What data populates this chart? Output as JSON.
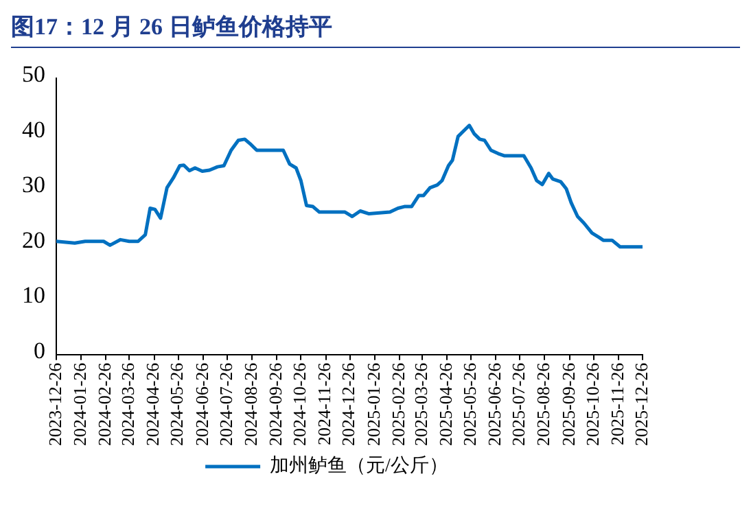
{
  "chart_data": {
    "type": "line",
    "title": "图17：12 月 26 日鲈鱼价格持平",
    "x": [
      "2023-12-26",
      "2024-01-18",
      "2024-01-31",
      "2024-02-23",
      "2024-03-02",
      "2024-03-15",
      "2024-03-26",
      "2024-04-06",
      "2024-04-15",
      "2024-04-21",
      "2024-04-27",
      "2024-05-04",
      "2024-05-12",
      "2024-05-20",
      "2024-05-28",
      "2024-06-02",
      "2024-06-09",
      "2024-06-16",
      "2024-06-25",
      "2024-07-04",
      "2024-07-14",
      "2024-07-22",
      "2024-07-31",
      "2024-08-09",
      "2024-08-17",
      "2024-08-25",
      "2024-09-01",
      "2024-09-21",
      "2024-10-04",
      "2024-10-12",
      "2024-10-20",
      "2024-10-26",
      "2024-11-02",
      "2024-11-10",
      "2024-11-18",
      "2024-12-20",
      "2024-12-29",
      "2025-01-08",
      "2025-01-19",
      "2025-02-14",
      "2025-02-24",
      "2025-03-04",
      "2025-03-13",
      "2025-03-22",
      "2025-03-28",
      "2025-04-05",
      "2025-04-14",
      "2025-04-20",
      "2025-04-28",
      "2025-05-03",
      "2025-05-10",
      "2025-05-17",
      "2025-05-24",
      "2025-05-30",
      "2025-06-06",
      "2025-06-12",
      "2025-06-20",
      "2025-06-29",
      "2025-07-07",
      "2025-07-31",
      "2025-08-09",
      "2025-08-16",
      "2025-08-23",
      "2025-08-31",
      "2025-09-05",
      "2025-09-15",
      "2025-09-22",
      "2025-09-28",
      "2025-10-06",
      "2025-10-14",
      "2025-10-24",
      "2025-11-02",
      "2025-11-07",
      "2025-11-18",
      "2025-11-28",
      "2025-12-26"
    ],
    "series": [
      {
        "name": "加州鲈鱼（元/公斤）",
        "color": "#0070c0",
        "values": [
          20.5,
          20.2,
          20.5,
          20.5,
          19.8,
          20.8,
          20.5,
          20.5,
          21.7,
          26.5,
          26.3,
          24.7,
          30.2,
          32,
          34.2,
          34.3,
          33.3,
          33.8,
          33.2,
          33.4,
          34,
          34.2,
          37,
          38.8,
          39,
          38,
          37,
          37,
          37,
          34.5,
          33.8,
          31.5,
          27,
          26.8,
          25.8,
          25.8,
          25,
          26,
          25.5,
          25.8,
          26.5,
          26.8,
          26.8,
          28.8,
          28.8,
          30.2,
          30.7,
          31.5,
          34.2,
          35.2,
          39.5,
          40.5,
          41.5,
          40,
          39,
          38.8,
          37,
          36.4,
          36,
          36,
          33.8,
          31.5,
          30.8,
          32.8,
          31.8,
          31.3,
          30,
          27.5,
          25,
          23.8,
          22,
          21.2,
          20.7,
          20.7,
          19.5,
          19.5
        ]
      }
    ],
    "xlim": [
      "2023-12-26",
      "2025-12-26"
    ],
    "xticks": [
      "2023-12-26",
      "2024-01-26",
      "2024-02-26",
      "2024-03-26",
      "2024-04-26",
      "2024-05-26",
      "2024-06-26",
      "2024-07-26",
      "2024-08-26",
      "2024-09-26",
      "2024-10-26",
      "2024-11-26",
      "2024-12-26",
      "2025-01-26",
      "2025-02-26",
      "2025-03-26",
      "2025-04-26",
      "2025-05-26",
      "2025-06-26",
      "2025-07-26",
      "2025-08-26",
      "2025-09-26",
      "2025-10-26",
      "2025-11-26",
      "2025-12-26"
    ],
    "ylim": [
      0,
      50
    ],
    "yticks": [
      0,
      10,
      20,
      30,
      40,
      50
    ],
    "grid": false,
    "legend": "bottom",
    "marker": "none",
    "line_style": "solid"
  }
}
